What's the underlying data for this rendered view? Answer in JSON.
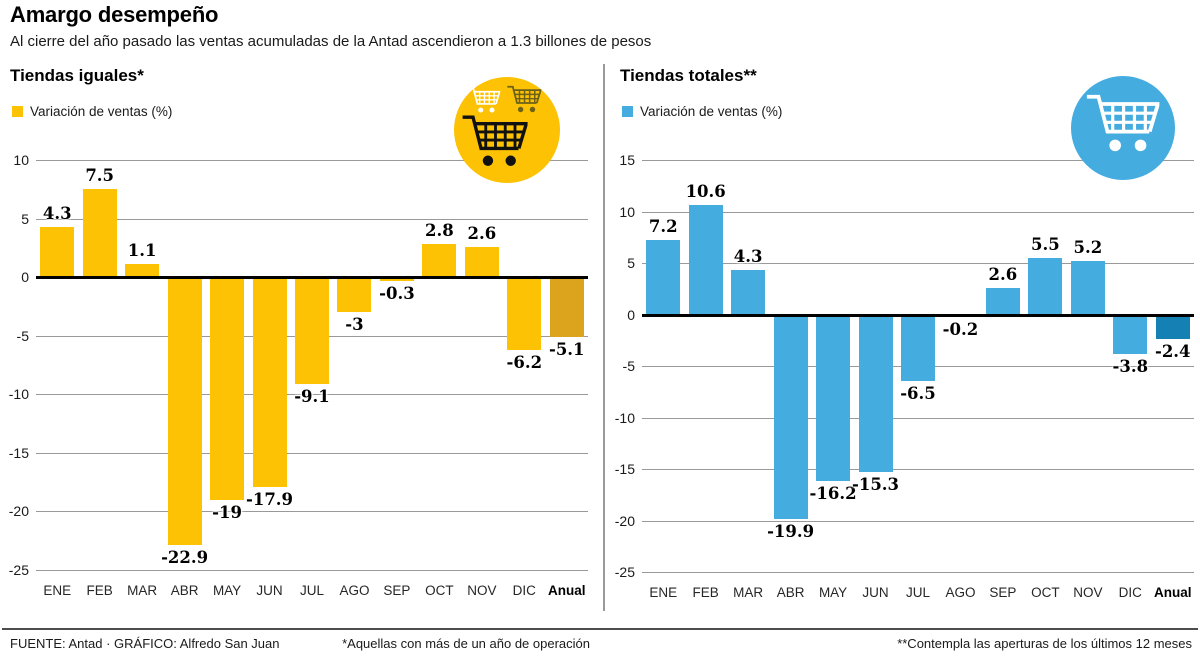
{
  "header": {
    "title": "Amargo desempeño",
    "subtitle": "Al cierre del año pasado las ventas acumuladas de la Antad ascendieron a 1.3 billones de pesos"
  },
  "chart_data": [
    {
      "type": "bar",
      "title": "Tiendas iguales*",
      "legend": "Variación de ventas (%)",
      "categories": [
        "ENE",
        "FEB",
        "MAR",
        "ABR",
        "MAY",
        "JUN",
        "JUL",
        "AGO",
        "SEP",
        "OCT",
        "NOV",
        "DIC",
        "Anual"
      ],
      "values": [
        4.3,
        7.5,
        1.1,
        -22.9,
        -19,
        -17.9,
        -9.1,
        -3,
        -0.3,
        2.8,
        2.6,
        -6.2,
        -5.1
      ],
      "ylim": [
        -25,
        10
      ],
      "ytick_step": 5,
      "grid": true,
      "legend_position": "top-left",
      "bar_color": "#fcc203",
      "annual_bar_color": "#dca31d",
      "icon": "shopping-cart",
      "icon_bg": "#fcc203"
    },
    {
      "type": "bar",
      "title": "Tiendas totales**",
      "legend": "Variación de ventas (%)",
      "categories": [
        "ENE",
        "FEB",
        "MAR",
        "ABR",
        "MAY",
        "JUN",
        "JUL",
        "AGO",
        "SEP",
        "OCT",
        "NOV",
        "DIC",
        "Anual"
      ],
      "values": [
        7.2,
        10.6,
        4.3,
        -19.9,
        -16.2,
        -15.3,
        -6.5,
        -0.2,
        2.6,
        5.5,
        5.2,
        -3.8,
        -2.4
      ],
      "ylim": [
        -25,
        15
      ],
      "ytick_step": 5,
      "grid": true,
      "legend_position": "top-left",
      "bar_color": "#45acdf",
      "annual_bar_color": "#1580b4",
      "icon": "shopping-cart",
      "icon_bg": "#45acdf"
    }
  ],
  "footer": {
    "source": "FUENTE: Antad · GRÁFICO: Alfredo San Juan",
    "note_same_stores": "*Aquellas con más de un año de operación",
    "note_total_stores": "**Contempla las aperturas de los últimos 12 meses"
  }
}
